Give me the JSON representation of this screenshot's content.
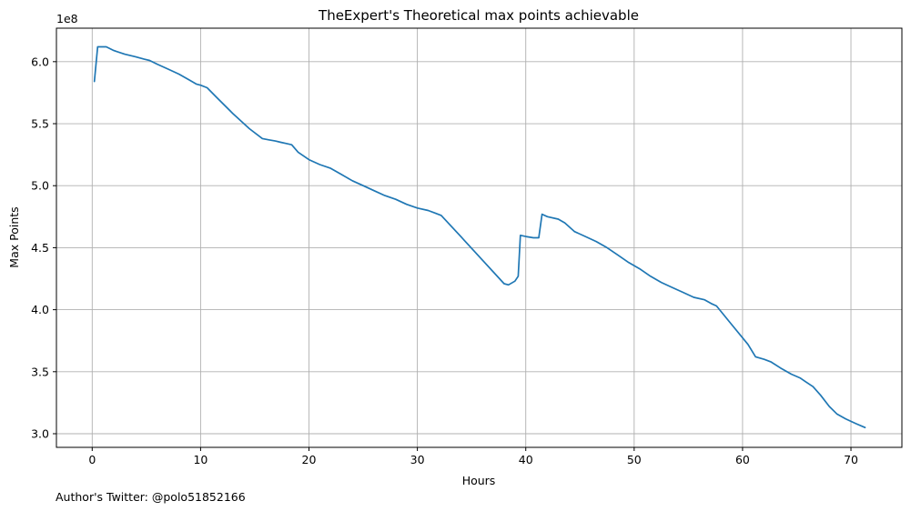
{
  "chart_data": {
    "type": "line",
    "title": "TheExpert's Theoretical max points achievable",
    "xlabel": "Hours",
    "ylabel": "Max Points",
    "y_multiplier_label": "1e8",
    "xlim": [
      -3.3,
      74.7
    ],
    "ylim": [
      2.89,
      6.27
    ],
    "x_ticks": [
      0,
      10,
      20,
      30,
      40,
      50,
      60,
      70
    ],
    "x_tick_labels": [
      "0",
      "10",
      "20",
      "30",
      "40",
      "50",
      "60",
      "70"
    ],
    "y_ticks": [
      3.0,
      3.5,
      4.0,
      4.5,
      5.0,
      5.5,
      6.0
    ],
    "y_tick_labels": [
      "3.0",
      "3.5",
      "4.0",
      "4.5",
      "5.0",
      "5.5",
      "6.0"
    ],
    "grid": true,
    "series": [
      {
        "color": "#1f77b4",
        "x": [
          0.2,
          0.5,
          1.3,
          2.0,
          3.0,
          4.0,
          4.8,
          5.3,
          6.0,
          7.0,
          8.0,
          9.0,
          9.6,
          10.0,
          10.6,
          11.5,
          13.0,
          14.5,
          15.7,
          16.3,
          16.9,
          17.4,
          17.9,
          18.4,
          19.0,
          20.0,
          21.0,
          22.0,
          23.0,
          24.0,
          25.0,
          26.0,
          27.0,
          28.0,
          29.0,
          30.0,
          31.0,
          31.6,
          32.2,
          34.0,
          36.0,
          38.0,
          38.4,
          39.0,
          39.3,
          39.5,
          40.0,
          40.7,
          41.2,
          41.5,
          42.0,
          43.0,
          43.6,
          44.5,
          45.5,
          46.5,
          47.5,
          48.5,
          49.5,
          50.5,
          51.5,
          52.5,
          53.5,
          54.5,
          55.5,
          56.5,
          57.1,
          57.6,
          59.0,
          60.5,
          61.2,
          62.0,
          62.6,
          63.5,
          64.5,
          65.3,
          65.8,
          66.5,
          67.2,
          68.0,
          68.7,
          69.5,
          70.0,
          70.5,
          71.3
        ],
        "y": [
          5.84,
          6.12,
          6.12,
          6.09,
          6.06,
          6.04,
          6.02,
          6.01,
          5.98,
          5.94,
          5.9,
          5.85,
          5.82,
          5.81,
          5.79,
          5.71,
          5.58,
          5.46,
          5.38,
          5.37,
          5.36,
          5.35,
          5.34,
          5.33,
          5.27,
          5.21,
          5.17,
          5.14,
          5.09,
          5.04,
          5.0,
          4.96,
          4.92,
          4.89,
          4.85,
          4.82,
          4.8,
          4.78,
          4.76,
          4.59,
          4.4,
          4.21,
          4.2,
          4.23,
          4.27,
          4.6,
          4.59,
          4.58,
          4.58,
          4.77,
          4.75,
          4.73,
          4.7,
          4.63,
          4.59,
          4.55,
          4.5,
          4.44,
          4.38,
          4.33,
          4.27,
          4.22,
          4.18,
          4.14,
          4.1,
          4.08,
          4.05,
          4.03,
          3.88,
          3.72,
          3.62,
          3.6,
          3.58,
          3.53,
          3.48,
          3.45,
          3.42,
          3.38,
          3.31,
          3.22,
          3.16,
          3.12,
          3.1,
          3.08,
          3.05
        ]
      }
    ],
    "footnote": "Author's Twitter: @polo51852166"
  }
}
